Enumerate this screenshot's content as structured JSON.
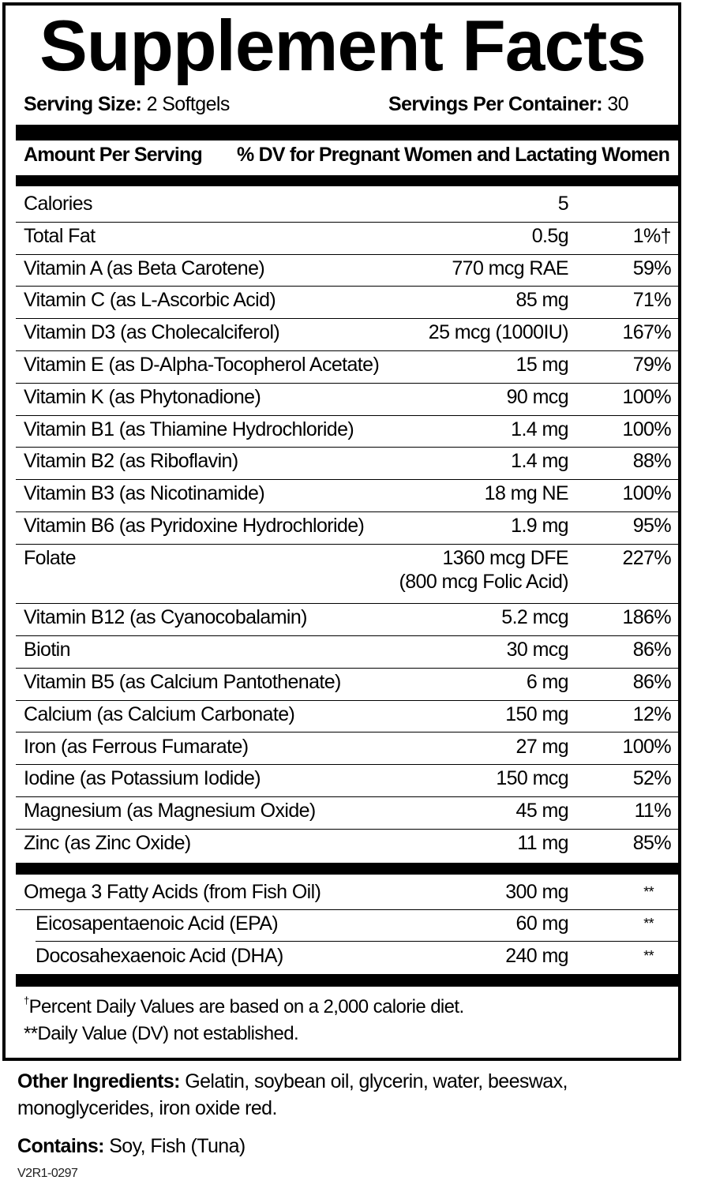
{
  "title": "Supplement Facts",
  "serving": {
    "size_label": "Serving Size:",
    "size_value": "2 Softgels",
    "per_container_label": "Servings Per Container:",
    "per_container_value": "30"
  },
  "header": {
    "amount": "Amount Per Serving",
    "dv": "% DV for Pregnant Women and Lactating Women"
  },
  "nutrients": [
    {
      "name": "Calories",
      "amount": "5",
      "dv": ""
    },
    {
      "name": "Total Fat",
      "amount": "0.5g",
      "dv": "1%†"
    },
    {
      "name": "Vitamin A (as Beta Carotene)",
      "amount": "770 mcg RAE",
      "dv": "59%"
    },
    {
      "name": "Vitamin C (as L-Ascorbic Acid)",
      "amount": "85 mg",
      "dv": "71%"
    },
    {
      "name": "Vitamin D3 (as Cholecalciferol)",
      "amount": "25 mcg (1000IU)",
      "dv": "167%"
    },
    {
      "name": "Vitamin E (as D-Alpha-Tocopherol Acetate)",
      "amount": "15 mg",
      "dv": "79%"
    },
    {
      "name": "Vitamin K (as Phytonadione)",
      "amount": "90 mcg",
      "dv": "100%"
    },
    {
      "name": "Vitamin B1 (as Thiamine Hydrochloride)",
      "amount": "1.4 mg",
      "dv": "100%"
    },
    {
      "name": "Vitamin B2 (as Riboflavin)",
      "amount": "1.4 mg",
      "dv": "88%"
    },
    {
      "name": "Vitamin B3 (as Nicotinamide)",
      "amount": "18 mg NE",
      "dv": "100%"
    },
    {
      "name": "Vitamin B6 (as Pyridoxine Hydrochloride)",
      "amount": "1.9 mg",
      "dv": "95%"
    },
    {
      "name": "Folate",
      "amount": "1360 mcg DFE",
      "amount2": "(800 mcg Folic Acid)",
      "dv": "227%"
    },
    {
      "name": "Vitamin B12 (as Cyanocobalamin)",
      "amount": "5.2 mcg",
      "dv": "186%"
    },
    {
      "name": "Biotin",
      "amount": "30 mcg",
      "dv": "86%"
    },
    {
      "name": "Vitamin B5 (as Calcium Pantothenate)",
      "amount": "6 mg",
      "dv": "86%"
    },
    {
      "name": "Calcium (as Calcium Carbonate)",
      "amount": "150 mg",
      "dv": "12%"
    },
    {
      "name": "Iron (as Ferrous Fumarate)",
      "amount": "27 mg",
      "dv": "100%"
    },
    {
      "name": "Iodine (as Potassium Iodide)",
      "amount": "150 mcg",
      "dv": "52%"
    },
    {
      "name": "Magnesium (as Magnesium Oxide)",
      "amount": "45 mg",
      "dv": "11%"
    },
    {
      "name": "Zinc (as Zinc Oxide)",
      "amount": "11 mg",
      "dv": "85%"
    }
  ],
  "omega": [
    {
      "name": "Omega 3 Fatty Acids (from Fish Oil)",
      "amount": "300 mg",
      "dv": "**"
    },
    {
      "name": "Eicosapentaenoic Acid (EPA)",
      "amount": "60 mg",
      "dv": "**"
    },
    {
      "name": "Docosahexaenoic Acid (DHA)",
      "amount": "240 mg",
      "dv": "**"
    }
  ],
  "footnotes": {
    "dagger_symbol": "†",
    "dagger": "Percent Daily Values are based on a 2,000 calorie diet.",
    "double_star": "**Daily Value (DV) not established."
  },
  "other_ingredients": {
    "label": "Other Ingredients:",
    "text": "Gelatin, soybean oil, glycerin, water, beeswax, monoglycerides, iron oxide red."
  },
  "contains": {
    "label": "Contains:",
    "text": "Soy, Fish (Tuna)"
  },
  "code": "V2R1-0297"
}
